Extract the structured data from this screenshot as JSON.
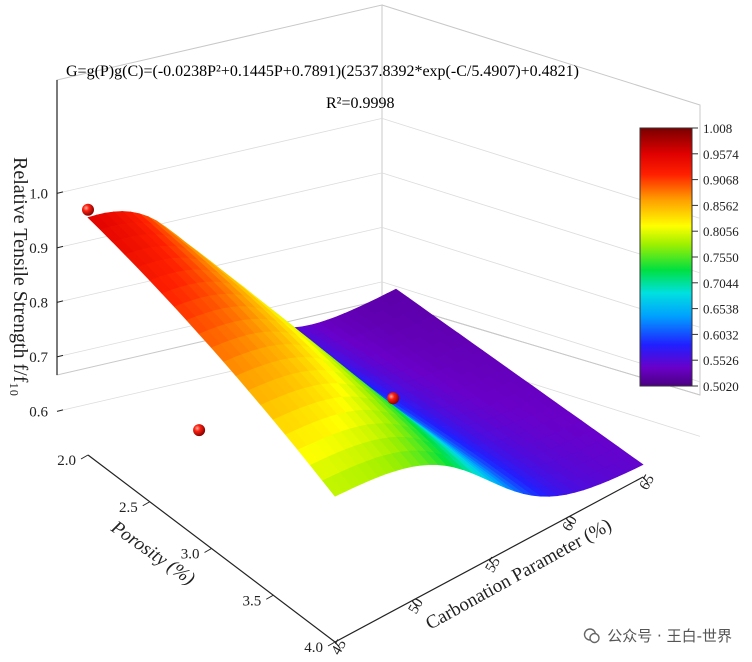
{
  "chart_data": {
    "type": "surface3d",
    "equation": "G=g(P)g(C)=(-0.0238P²+0.1445P+0.7891)(2537.8392*exp(-C/5.4907)+0.4821)",
    "r_squared": "R²=0.9998",
    "zlabel": "Relative Tensile Strength  f/f₁₀",
    "xlabel": "Porosity (%)",
    "ylabel": "Carbonation Parameter (%)",
    "xlim": [
      2.0,
      4.0
    ],
    "ylim": [
      45,
      65
    ],
    "zlim": [
      0.5,
      1.05
    ],
    "x_ticks": [
      "2.0",
      "2.5",
      "3.0",
      "3.5",
      "4.0"
    ],
    "y_ticks": [
      "45",
      "50",
      "55",
      "60",
      "65"
    ],
    "z_ticks": [
      "0.6",
      "0.7",
      "0.8",
      "0.9",
      "1.0"
    ],
    "colorbar_ticks": [
      "1.008",
      "0.9574",
      "0.9068",
      "0.8562",
      "0.8056",
      "0.7550",
      "0.7044",
      "0.6538",
      "0.6032",
      "0.5526",
      "0.5020"
    ],
    "colorbar_range": [
      0.502,
      1.008
    ],
    "model": {
      "g_p": [
        -0.0238,
        0.1445,
        0.7891
      ],
      "g_c": {
        "a": 2537.8392,
        "b": 5.4907,
        "c": 0.4821
      }
    },
    "data_points": [
      {
        "porosity": 2.0,
        "carbonation": 45,
        "value": 0.97
      },
      {
        "porosity": 2.9,
        "carbonation": 45,
        "value": 0.72
      },
      {
        "porosity": 2.6,
        "carbonation": 60,
        "value": 0.5
      }
    ]
  },
  "watermark": {
    "text": "公众号 · 王白-世界"
  }
}
